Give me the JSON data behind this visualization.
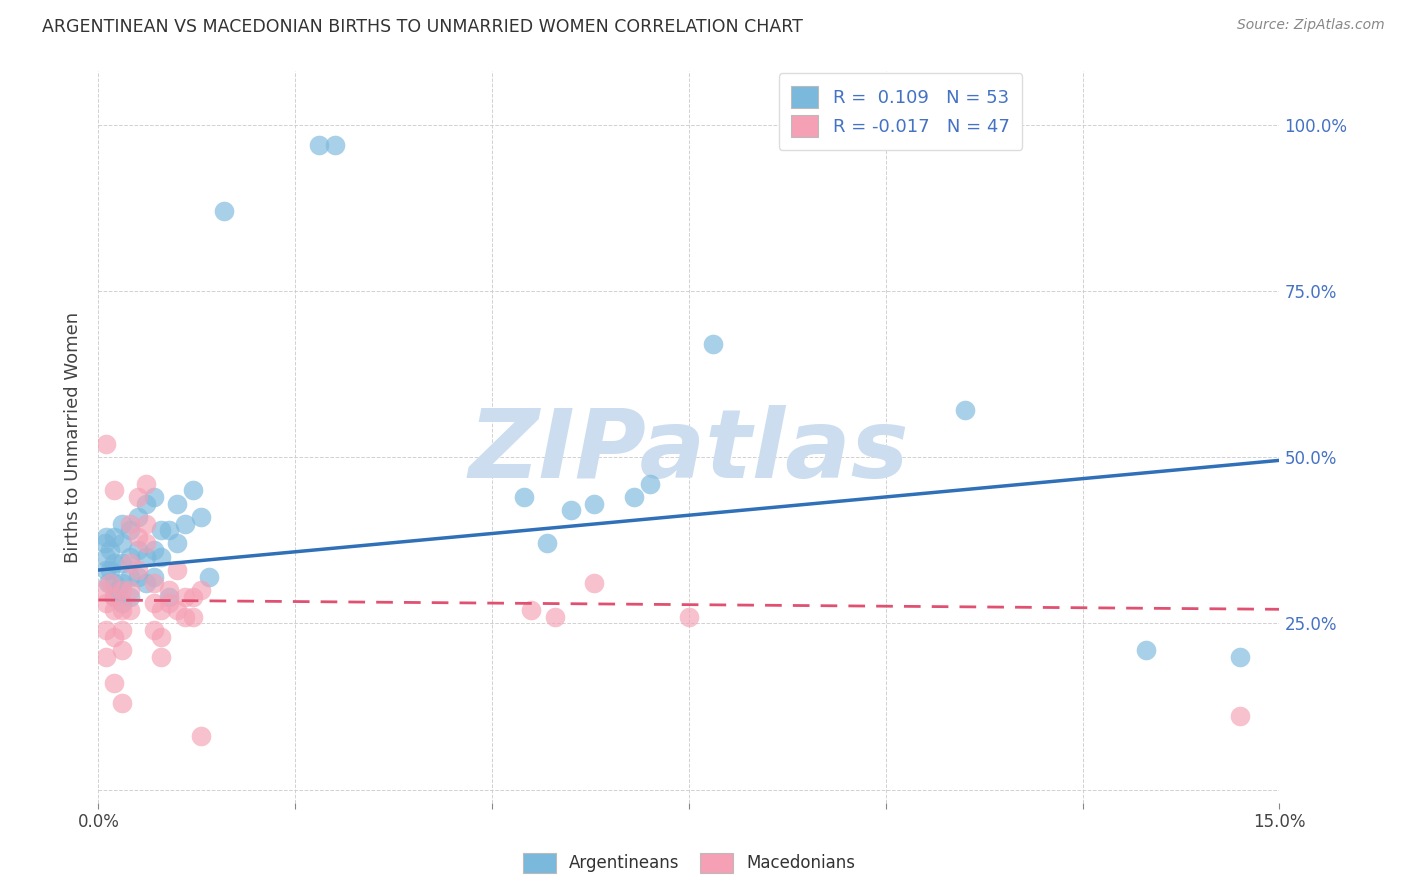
{
  "title": "ARGENTINEAN VS MACEDONIAN BIRTHS TO UNMARRIED WOMEN CORRELATION CHART",
  "source": "Source: ZipAtlas.com",
  "ylabel": "Births to Unmarried Women",
  "xlim": [
    0.0,
    0.15
  ],
  "ylim": [
    -0.02,
    1.08
  ],
  "x_ticks": [
    0.0,
    0.025,
    0.05,
    0.075,
    0.1,
    0.125,
    0.15
  ],
  "x_tick_labels_show": [
    "0.0%",
    "",
    "",
    "",
    "",
    "",
    "15.0%"
  ],
  "y_ticks_right": [
    0.25,
    0.5,
    0.75,
    1.0
  ],
  "y_tick_labels_right": [
    "25.0%",
    "50.0%",
    "75.0%",
    "100.0%"
  ],
  "legend_top": [
    "R =  0.109   N = 53",
    "R = -0.017   N = 47"
  ],
  "legend_bottom": [
    "Argentineans",
    "Macedonians"
  ],
  "blue_color": "#7ab8dc",
  "pink_color": "#f5a0b5",
  "blue_line_color": "#3070b8",
  "pink_line_color": "#e05070",
  "watermark_text": "ZIPatlas",
  "watermark_color": "#ccddf0",
  "blue_line_x0": 0.0,
  "blue_line_y0": 0.33,
  "blue_line_x1": 0.15,
  "blue_line_y1": 0.495,
  "pink_line_x0": 0.0,
  "pink_line_y0": 0.285,
  "pink_line_x1": 0.15,
  "pink_line_y1": 0.271,
  "blue_x": [
    0.0008,
    0.0009,
    0.001,
    0.001,
    0.0012,
    0.0015,
    0.0015,
    0.002,
    0.002,
    0.002,
    0.002,
    0.0025,
    0.003,
    0.003,
    0.003,
    0.003,
    0.003,
    0.004,
    0.004,
    0.004,
    0.004,
    0.005,
    0.005,
    0.005,
    0.006,
    0.006,
    0.006,
    0.007,
    0.007,
    0.007,
    0.008,
    0.008,
    0.009,
    0.009,
    0.01,
    0.01,
    0.011,
    0.012,
    0.013,
    0.014,
    0.016,
    0.028,
    0.03,
    0.054,
    0.057,
    0.063,
    0.068,
    0.078,
    0.11,
    0.133,
    0.145,
    0.06,
    0.07
  ],
  "blue_y": [
    0.37,
    0.33,
    0.35,
    0.38,
    0.31,
    0.33,
    0.36,
    0.29,
    0.31,
    0.34,
    0.38,
    0.3,
    0.28,
    0.31,
    0.34,
    0.37,
    0.4,
    0.29,
    0.32,
    0.35,
    0.39,
    0.32,
    0.36,
    0.41,
    0.31,
    0.35,
    0.43,
    0.32,
    0.36,
    0.44,
    0.35,
    0.39,
    0.29,
    0.39,
    0.37,
    0.43,
    0.4,
    0.45,
    0.41,
    0.32,
    0.87,
    0.97,
    0.97,
    0.44,
    0.37,
    0.43,
    0.44,
    0.67,
    0.57,
    0.21,
    0.2,
    0.42,
    0.46
  ],
  "pink_x": [
    0.0005,
    0.001,
    0.001,
    0.001,
    0.001,
    0.0015,
    0.002,
    0.002,
    0.002,
    0.002,
    0.002,
    0.003,
    0.003,
    0.003,
    0.003,
    0.003,
    0.004,
    0.004,
    0.004,
    0.004,
    0.005,
    0.005,
    0.005,
    0.006,
    0.006,
    0.006,
    0.007,
    0.007,
    0.007,
    0.008,
    0.008,
    0.008,
    0.009,
    0.009,
    0.01,
    0.01,
    0.011,
    0.011,
    0.012,
    0.012,
    0.013,
    0.013,
    0.055,
    0.058,
    0.063,
    0.075,
    0.145
  ],
  "pink_y": [
    0.3,
    0.28,
    0.24,
    0.2,
    0.52,
    0.31,
    0.29,
    0.27,
    0.23,
    0.16,
    0.45,
    0.3,
    0.27,
    0.24,
    0.21,
    0.13,
    0.34,
    0.3,
    0.27,
    0.4,
    0.44,
    0.38,
    0.33,
    0.46,
    0.4,
    0.37,
    0.31,
    0.28,
    0.24,
    0.27,
    0.23,
    0.2,
    0.3,
    0.28,
    0.27,
    0.33,
    0.26,
    0.29,
    0.26,
    0.29,
    0.3,
    0.08,
    0.27,
    0.26,
    0.31,
    0.26,
    0.11
  ]
}
